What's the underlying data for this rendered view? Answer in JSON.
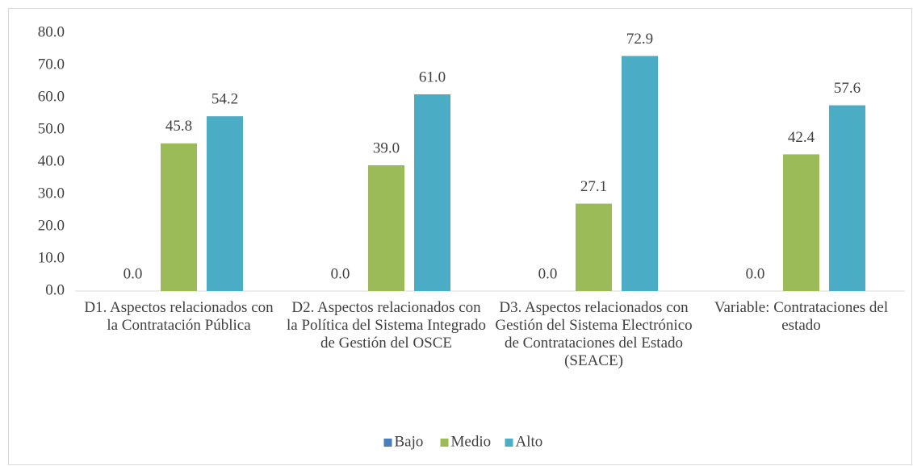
{
  "chart_data": {
    "type": "bar",
    "categories": [
      "D1. Aspectos relacionados con la Contratación Pública",
      "D2. Aspectos relacionados con la Política del Sistema Integrado de Gestión del OSCE",
      "D3. Aspectos relacionados con Gestión del Sistema Electrónico de Contrataciones del Estado (SEACE)",
      "Variable: Contrataciones del estado"
    ],
    "series": [
      {
        "name": "Bajo",
        "color": "#4a7ebb",
        "values": [
          0,
          0,
          0,
          0
        ],
        "value_labels": [
          "0.0",
          "0.0",
          "0.0",
          "0.0"
        ]
      },
      {
        "name": "Medio",
        "color": "#9bbb59",
        "values": [
          45.8,
          39,
          27.1,
          42.4
        ],
        "value_labels": [
          "45.8",
          "39.0",
          "27.1",
          "42.4"
        ]
      },
      {
        "name": "Alto",
        "color": "#4bacc6",
        "values": [
          54.2,
          61,
          72.9,
          57.6
        ],
        "value_labels": [
          "54.2",
          "61.0",
          "72.9",
          "57.6"
        ]
      }
    ],
    "ylim": [
      0,
      80
    ],
    "yticks": [
      {
        "value": 0,
        "label": "0.0"
      },
      {
        "value": 10,
        "label": "10.0"
      },
      {
        "value": 20,
        "label": "20.0"
      },
      {
        "value": 30,
        "label": "30.0"
      },
      {
        "value": 40,
        "label": "40.0"
      },
      {
        "value": 50,
        "label": "50.0"
      },
      {
        "value": 60,
        "label": "60.0"
      },
      {
        "value": 70,
        "label": "70.0"
      },
      {
        "value": 80,
        "label": "80.0"
      }
    ],
    "grid": false,
    "legend": "bottom"
  }
}
